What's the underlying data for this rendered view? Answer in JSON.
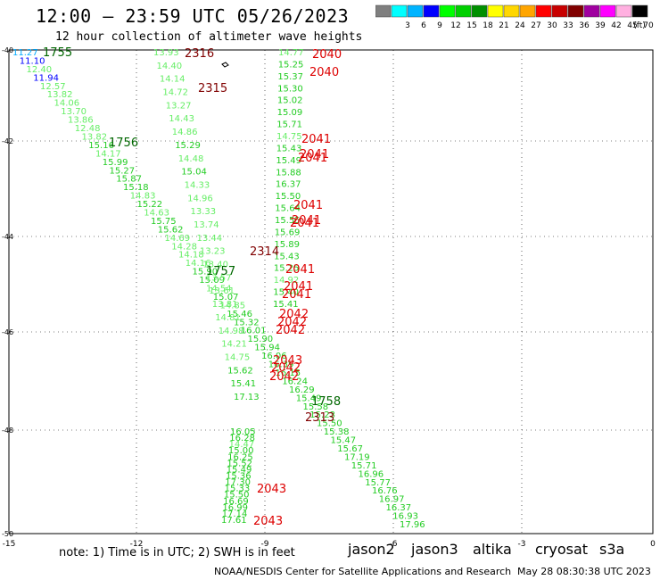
{
  "header": {
    "title": "12:00 — 23:59 UTC 05/26/2023",
    "subtitle": "12 hour collection of altimeter wave heights"
  },
  "legend": {
    "unit": "(ft)",
    "bins": [
      {
        "label": "",
        "color": "#7f7f7f"
      },
      {
        "label": "3",
        "color": "#00ffff"
      },
      {
        "label": "6",
        "color": "#00b4ff"
      },
      {
        "label": "9",
        "color": "#0000ff"
      },
      {
        "label": "12",
        "color": "#00ff00"
      },
      {
        "label": "15",
        "color": "#00d000"
      },
      {
        "label": "18",
        "color": "#009000"
      },
      {
        "label": "21",
        "color": "#ffff00"
      },
      {
        "label": "24",
        "color": "#ffd700"
      },
      {
        "label": "27",
        "color": "#ffa500"
      },
      {
        "label": "30",
        "color": "#ff0000"
      },
      {
        "label": "33",
        "color": "#c80000"
      },
      {
        "label": "36",
        "color": "#800000"
      },
      {
        "label": "39",
        "color": "#a000a0"
      },
      {
        "label": "42",
        "color": "#ff00ff"
      },
      {
        "label": "45",
        "color": "#ffb0e0"
      },
      {
        "label": "70",
        "color": "#000000"
      }
    ]
  },
  "axes": {
    "lon_ticks": [
      "-15",
      "-12",
      "-9",
      "-6",
      "-3",
      "0"
    ],
    "lat_ticks": [
      "-40",
      "-42",
      "-44",
      "-46",
      "-48",
      "-50"
    ]
  },
  "tracks": {
    "west": [
      {
        "t": "11.27",
        "c": "#00aaff"
      },
      {
        "t": "11.10",
        "c": "#0000ff"
      },
      {
        "t": "12.40",
        "c": "#66ee66"
      },
      {
        "t": "11.94",
        "c": "#0000ff"
      },
      {
        "t": "12.57",
        "c": "#66ee66"
      },
      {
        "t": "13.82",
        "c": "#66ee66"
      },
      {
        "t": "14.06",
        "c": "#66ee66"
      },
      {
        "t": "13.70",
        "c": "#66ee66"
      },
      {
        "t": "13.86",
        "c": "#66ee66"
      },
      {
        "t": "12.48",
        "c": "#66ee66"
      },
      {
        "t": "13.82",
        "c": "#66ee66"
      },
      {
        "t": "15.16",
        "c": "#22cc22"
      },
      {
        "t": "14.17",
        "c": "#66ee66"
      },
      {
        "t": "15.99",
        "c": "#22cc22"
      },
      {
        "t": "15.27",
        "c": "#22cc22"
      },
      {
        "t": "15.87",
        "c": "#22cc22"
      },
      {
        "t": "15.18",
        "c": "#22cc22"
      },
      {
        "t": "14.83",
        "c": "#66ee66"
      },
      {
        "t": "15.22",
        "c": "#22cc22"
      },
      {
        "t": "14.63",
        "c": "#66ee66"
      },
      {
        "t": "15.75",
        "c": "#22cc22"
      },
      {
        "t": "15.62",
        "c": "#22cc22"
      },
      {
        "t": "14.69",
        "c": "#66ee66"
      },
      {
        "t": "14.28",
        "c": "#66ee66"
      },
      {
        "t": "14.18",
        "c": "#66ee66"
      },
      {
        "t": "14.16",
        "c": "#66ee66"
      },
      {
        "t": "15.90",
        "c": "#22cc22"
      },
      {
        "t": "15.09",
        "c": "#22cc22"
      },
      {
        "t": "14.54",
        "c": "#66ee66"
      },
      {
        "t": "15.07",
        "c": "#22cc22"
      },
      {
        "t": "14.85",
        "c": "#66ee66"
      },
      {
        "t": "15.46",
        "c": "#22cc22"
      },
      {
        "t": "15.32",
        "c": "#22cc22"
      },
      {
        "t": "16.01",
        "c": "#22cc22"
      },
      {
        "t": "15.90",
        "c": "#22cc22"
      },
      {
        "t": "15.94",
        "c": "#22cc22"
      },
      {
        "t": "16.06",
        "c": "#22cc22"
      },
      {
        "t": "16.39",
        "c": "#22cc22"
      },
      {
        "t": "16.15",
        "c": "#22cc22"
      },
      {
        "t": "16.24",
        "c": "#22cc22"
      },
      {
        "t": "16.29",
        "c": "#22cc22"
      },
      {
        "t": "15.49",
        "c": "#22cc22"
      },
      {
        "t": "15.58",
        "c": "#22cc22"
      },
      {
        "t": "15.23",
        "c": "#22cc22"
      },
      {
        "t": "15.50",
        "c": "#22cc22"
      },
      {
        "t": "15.38",
        "c": "#22cc22"
      },
      {
        "t": "15.47",
        "c": "#22cc22"
      },
      {
        "t": "15.67",
        "c": "#22cc22"
      },
      {
        "t": "17.19",
        "c": "#22cc22"
      },
      {
        "t": "15.71",
        "c": "#22cc22"
      },
      {
        "t": "16.96",
        "c": "#22cc22"
      },
      {
        "t": "15.77",
        "c": "#22cc22"
      },
      {
        "t": "16.76",
        "c": "#22cc22"
      },
      {
        "t": "16.97",
        "c": "#22cc22"
      },
      {
        "t": "16.37",
        "c": "#22cc22"
      },
      {
        "t": "16.93",
        "c": "#22cc22"
      },
      {
        "t": "17.96",
        "c": "#22cc22"
      }
    ],
    "middle": [
      {
        "t": "13.93",
        "c": "#66ee66"
      },
      {
        "t": "14.40",
        "c": "#66ee66"
      },
      {
        "t": "14.14",
        "c": "#66ee66"
      },
      {
        "t": "14.72",
        "c": "#66ee66"
      },
      {
        "t": "13.27",
        "c": "#66ee66"
      },
      {
        "t": "14.43",
        "c": "#66ee66"
      },
      {
        "t": "14.86",
        "c": "#66ee66"
      },
      {
        "t": "15.29",
        "c": "#22cc22"
      },
      {
        "t": "14.48",
        "c": "#66ee66"
      },
      {
        "t": "15.04",
        "c": "#22cc22"
      },
      {
        "t": "14.33",
        "c": "#66ee66"
      },
      {
        "t": "14.96",
        "c": "#66ee66"
      },
      {
        "t": "13.33",
        "c": "#66ee66"
      },
      {
        "t": "13.74",
        "c": "#66ee66"
      },
      {
        "t": "13.44",
        "c": "#66ee66"
      },
      {
        "t": "13.23",
        "c": "#66ee66"
      },
      {
        "t": "13.40",
        "c": "#66ee66"
      },
      {
        "t": "13.57",
        "c": "#66ee66"
      },
      {
        "t": "13.61",
        "c": "#66ee66"
      },
      {
        "t": "13.81",
        "c": "#66ee66"
      },
      {
        "t": "14.81",
        "c": "#66ee66"
      },
      {
        "t": "14.98",
        "c": "#66ee66"
      },
      {
        "t": "14.21",
        "c": "#66ee66"
      },
      {
        "t": "14.75",
        "c": "#66ee66"
      },
      {
        "t": "15.62",
        "c": "#22cc22"
      },
      {
        "t": "15.41",
        "c": "#22cc22"
      },
      {
        "t": "17.13",
        "c": "#22cc22"
      }
    ],
    "east": [
      {
        "t": "14.77",
        "c": "#66ee66"
      },
      {
        "t": "15.25",
        "c": "#22cc22"
      },
      {
        "t": "15.37",
        "c": "#22cc22"
      },
      {
        "t": "15.30",
        "c": "#22cc22"
      },
      {
        "t": "15.02",
        "c": "#22cc22"
      },
      {
        "t": "15.09",
        "c": "#22cc22"
      },
      {
        "t": "15.71",
        "c": "#22cc22"
      },
      {
        "t": "14.75",
        "c": "#66ee66"
      },
      {
        "t": "15.43",
        "c": "#22cc22"
      },
      {
        "t": "15.49",
        "c": "#22cc22"
      },
      {
        "t": "15.88",
        "c": "#22cc22"
      },
      {
        "t": "16.37",
        "c": "#22cc22"
      },
      {
        "t": "15.50",
        "c": "#22cc22"
      },
      {
        "t": "15.64",
        "c": "#22cc22"
      },
      {
        "t": "15.55",
        "c": "#22cc22"
      },
      {
        "t": "15.69",
        "c": "#22cc22"
      },
      {
        "t": "15.89",
        "c": "#22cc22"
      },
      {
        "t": "15.43",
        "c": "#22cc22"
      },
      {
        "t": "15.25",
        "c": "#22cc22"
      },
      {
        "t": "14.92",
        "c": "#66ee66"
      },
      {
        "t": "15.40",
        "c": "#22cc22"
      },
      {
        "t": "15.41",
        "c": "#22cc22"
      }
    ],
    "south": [
      {
        "t": "16.05",
        "c": "#22cc22"
      },
      {
        "t": "16.28",
        "c": "#22cc22"
      },
      {
        "t": "14.47",
        "c": "#66ee66"
      },
      {
        "t": "15.00",
        "c": "#22cc22"
      },
      {
        "t": "16.25",
        "c": "#22cc22"
      },
      {
        "t": "15.52",
        "c": "#22cc22"
      },
      {
        "t": "15.49",
        "c": "#22cc22"
      },
      {
        "t": "15.36",
        "c": "#22cc22"
      },
      {
        "t": "17.30",
        "c": "#22cc22"
      },
      {
        "t": "15.33",
        "c": "#22cc22"
      },
      {
        "t": "15.50",
        "c": "#22cc22"
      },
      {
        "t": "16.69",
        "c": "#22cc22"
      },
      {
        "t": "16.99",
        "c": "#22cc22"
      },
      {
        "t": "17.14",
        "c": "#22cc22"
      },
      {
        "t": "17.61",
        "c": "#22cc22"
      }
    ]
  },
  "time_labels": [
    {
      "t": "1755",
      "c": "#006600"
    },
    {
      "t": "2316",
      "c": "#800000"
    },
    {
      "t": "2040",
      "c": "#dd0000"
    },
    {
      "t": "2040",
      "c": "#dd0000"
    },
    {
      "t": "2315",
      "c": "#800000"
    },
    {
      "t": "1756",
      "c": "#006600"
    },
    {
      "t": "2041",
      "c": "#dd0000"
    },
    {
      "t": "2041",
      "c": "#dd0000"
    },
    {
      "t": "2041",
      "c": "#dd0000"
    },
    {
      "t": "2041",
      "c": "#dd0000"
    },
    {
      "t": "2041",
      "c": "#dd0000"
    },
    {
      "t": "2041",
      "c": "#dd0000"
    },
    {
      "t": "2314",
      "c": "#800000"
    },
    {
      "t": "1757",
      "c": "#006600"
    },
    {
      "t": "2041",
      "c": "#dd0000"
    },
    {
      "t": "2041",
      "c": "#dd0000"
    },
    {
      "t": "2041",
      "c": "#dd0000"
    },
    {
      "t": "2042",
      "c": "#dd0000"
    },
    {
      "t": "2042",
      "c": "#dd0000"
    },
    {
      "t": "2042",
      "c": "#dd0000"
    },
    {
      "t": "2043",
      "c": "#dd0000"
    },
    {
      "t": "2042",
      "c": "#dd0000"
    },
    {
      "t": "2042",
      "c": "#dd0000"
    },
    {
      "t": "1758",
      "c": "#006600"
    },
    {
      "t": "2313",
      "c": "#800000"
    },
    {
      "t": "2043",
      "c": "#dd0000"
    },
    {
      "t": "2043",
      "c": "#dd0000"
    }
  ],
  "note": "note:  1) Time is in UTC; 2) SWH is in feet",
  "satellites": [
    {
      "name": "jason2",
      "color": "#0000ff"
    },
    {
      "name": "jason3",
      "color": "#009000"
    },
    {
      "name": "altika",
      "color": "#ff9900"
    },
    {
      "name": "cryosat",
      "color": "#dd0000"
    },
    {
      "name": "s3a",
      "color": "#800000"
    }
  ],
  "footer": {
    "center": "NOAA/NESDIS Center for Satellite Applications and Research",
    "timestamp": "May 28 08:30:38 UTC 2023"
  }
}
